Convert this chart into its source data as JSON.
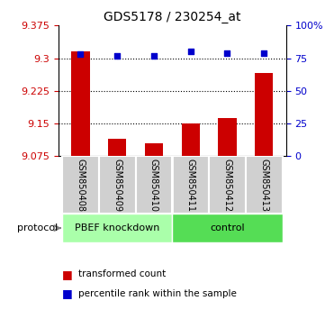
{
  "title": "GDS5178 / 230254_at",
  "samples": [
    "GSM850408",
    "GSM850409",
    "GSM850410",
    "GSM850411",
    "GSM850412",
    "GSM850413"
  ],
  "transformed_counts": [
    9.315,
    9.115,
    9.105,
    9.15,
    9.163,
    9.265
  ],
  "percentile_ranks": [
    78,
    77,
    77,
    80,
    79,
    79
  ],
  "y_min": 9.075,
  "y_max": 9.375,
  "y_ticks": [
    9.075,
    9.15,
    9.225,
    9.3,
    9.375
  ],
  "y_tick_labels": [
    "9.075",
    "9.15",
    "9.225",
    "9.3",
    "9.375"
  ],
  "right_y_ticks": [
    0,
    25,
    50,
    75,
    100
  ],
  "right_y_labels": [
    "0",
    "25",
    "50",
    "75",
    "100%"
  ],
  "bar_color": "#cc0000",
  "dot_color": "#0000cc",
  "groups": [
    {
      "label": "PBEF knockdown",
      "samples": [
        0,
        1,
        2
      ],
      "color": "#aaffaa"
    },
    {
      "label": "control",
      "samples": [
        3,
        4,
        5
      ],
      "color": "#55dd55"
    }
  ],
  "protocol_label": "protocol",
  "legend_bar_label": "transformed count",
  "legend_dot_label": "percentile rank within the sample",
  "tick_color_left": "#cc0000",
  "tick_color_right": "#0000cc",
  "bar_bottom": 9.075,
  "percentile_scale_min": 0,
  "percentile_scale_max": 100
}
